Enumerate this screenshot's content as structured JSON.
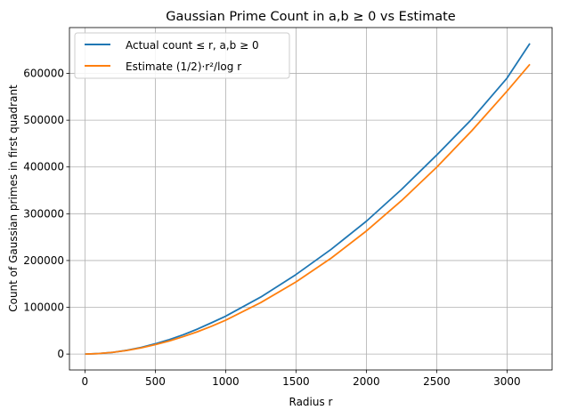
{
  "chart_data": {
    "type": "line",
    "title": "Gaussian Prime Count in a,b ≥ 0 vs Estimate",
    "xlabel": "Radius r",
    "ylabel": "Count of Gaussian primes in first quadrant",
    "xlim": [
      -110,
      3320
    ],
    "ylim": [
      -34000,
      698000
    ],
    "xticks": [
      0,
      500,
      1000,
      1500,
      2000,
      2500,
      3000
    ],
    "yticks": [
      0,
      100000,
      200000,
      300000,
      400000,
      500000,
      600000
    ],
    "grid": true,
    "legend_position": "top-left",
    "series": [
      {
        "name": "Actual count ≤ r, a,b ≥ 0",
        "color": "#1f77b4",
        "x": [
          2,
          100,
          200,
          300,
          400,
          500,
          600,
          700,
          800,
          900,
          1000,
          1250,
          1500,
          1750,
          2000,
          2250,
          2500,
          2750,
          3000,
          3162
        ],
        "y": [
          0,
          1100,
          3700,
          8200,
          14300,
          22000,
          31000,
          41500,
          53500,
          67000,
          81000,
          122000,
          170000,
          224000,
          284000,
          352000,
          425500,
          502500,
          590000,
          664000
        ]
      },
      {
        "name": "Estimate (1/2)·r²/log r",
        "color": "#ff7f0e",
        "x": [
          2,
          100,
          200,
          300,
          400,
          500,
          600,
          700,
          800,
          900,
          1000,
          1250,
          1500,
          1750,
          2000,
          2250,
          2500,
          2750,
          3000,
          3162
        ],
        "y": [
          0,
          1100,
          3800,
          7900,
          13300,
          20100,
          28100,
          37400,
          47800,
          59500,
          72400,
          110100,
          154200,
          205100,
          263100,
          328000,
          399500,
          477700,
          562200,
          619400
        ]
      }
    ]
  }
}
